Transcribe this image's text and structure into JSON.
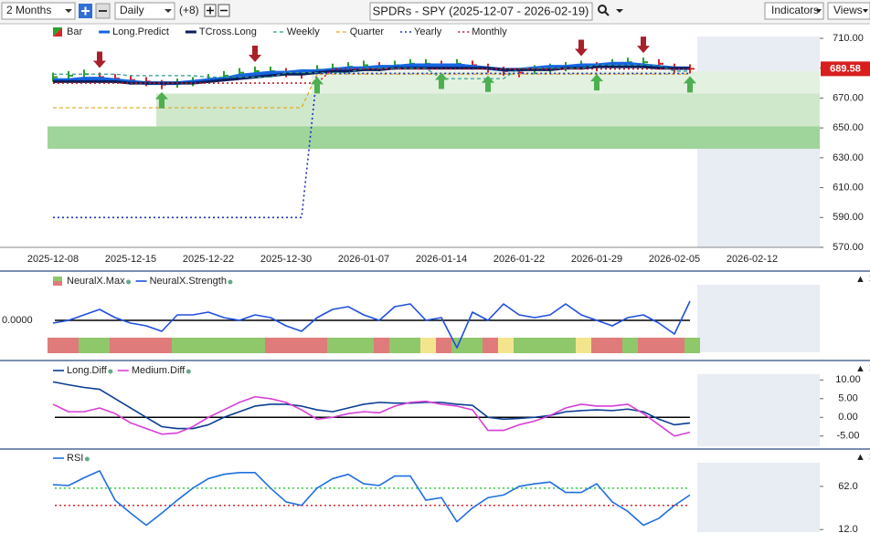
{
  "toolbar": {
    "period": "2 Months",
    "interval": "Daily",
    "offset": "(+8)",
    "title": "SPDRs - SPY (2025-12-07 - 2026-02-19)",
    "indicators": "Indicators",
    "views": "Views"
  },
  "chart_data": [
    {
      "type": "line",
      "ylim": [
        570,
        710
      ],
      "yticks": [
        {
          "value": 710,
          "label": "710.00"
        },
        {
          "value": 690,
          "label": "690.00"
        },
        {
          "value": 670,
          "label": "670.00"
        },
        {
          "value": 650,
          "label": "650.00"
        },
        {
          "value": 630,
          "label": "630.00"
        },
        {
          "value": 610,
          "label": "610.00"
        },
        {
          "value": 590,
          "label": "590.00"
        },
        {
          "value": 570,
          "label": "570.00"
        }
      ],
      "tick_side": "right",
      "categories": [
        "2025-12-08",
        null,
        null,
        null,
        null,
        "2025-12-15",
        null,
        null,
        null,
        null,
        "2025-12-22",
        null,
        null,
        null,
        null,
        "2025-12-30",
        null,
        null,
        null,
        null,
        "2026-01-07",
        null,
        null,
        null,
        null,
        "2026-01-14",
        null,
        null,
        null,
        null,
        "2026-01-22",
        null,
        null,
        null,
        null,
        "2026-01-29",
        null,
        null,
        null,
        null,
        "2026-02-05",
        null,
        null,
        null,
        null,
        "2026-02-12",
        null,
        null,
        null,
        null
      ],
      "last_price": 689.58,
      "last_price_color": "#d81e1e",
      "bands": [
        {
          "from": 636,
          "to": 651,
          "start": 0,
          "color": "#9fd49a"
        },
        {
          "from": 651,
          "to": 673,
          "start": 7,
          "color": "#cfe8cb"
        },
        {
          "from": 673,
          "to": 688,
          "start": 17,
          "color": "#e3f1e0"
        }
      ],
      "down_arrows": [
        3,
        13,
        34,
        38
      ],
      "up_arrows": [
        7,
        17,
        25,
        28,
        35,
        41
      ],
      "down_arrow_color": "#a8202a",
      "up_arrow_color": "#4caf50",
      "series": [
        {
          "name": "Bar",
          "kind": "ohlc",
          "color": "#2ca02c",
          "down_color": "#d62728",
          "values": [
            684,
            685,
            686,
            684,
            683,
            682,
            681,
            679,
            680,
            681,
            683,
            685,
            687,
            688,
            688,
            687,
            686,
            689,
            690,
            691,
            692,
            691,
            692,
            693,
            693,
            692,
            693,
            692,
            690,
            688,
            687,
            689,
            690,
            691,
            692,
            691,
            693,
            694,
            694,
            693,
            690,
            689.58,
            null,
            null,
            null,
            null,
            null,
            null,
            null,
            null
          ]
        },
        {
          "name": "Long.Predict",
          "kind": "line",
          "style": "solid",
          "width": 4,
          "color": "#1565e0",
          "values": [
            682,
            682,
            683,
            683,
            682,
            681,
            680,
            680,
            680,
            681,
            682,
            683,
            685,
            686,
            687,
            687,
            688,
            688,
            689,
            690,
            690,
            691,
            691,
            692,
            692,
            692,
            692,
            691,
            690,
            689,
            689,
            690,
            691,
            691,
            692,
            692,
            693,
            693,
            692,
            691,
            690,
            690,
            null,
            null,
            null,
            null,
            null,
            null,
            null,
            null
          ]
        },
        {
          "name": "TCross.Long",
          "kind": "line",
          "style": "solid",
          "width": 3,
          "color": "#0a1f5c",
          "values": [
            681,
            681,
            681,
            681,
            681,
            680,
            680,
            680,
            680,
            680,
            681,
            682,
            683,
            684,
            685,
            686,
            686,
            687,
            688,
            688,
            689,
            689,
            690,
            690,
            690,
            690,
            690,
            690,
            690,
            689,
            689,
            689,
            689,
            690,
            690,
            691,
            691,
            691,
            691,
            690,
            690,
            690,
            null,
            null,
            null,
            null,
            null,
            null,
            null,
            null
          ]
        },
        {
          "name": "Weekly",
          "kind": "line",
          "style": "dashed",
          "width": 1.2,
          "color": "#2e9a8a",
          "values": [
            686,
            686,
            686,
            686,
            686,
            685,
            685,
            685,
            685,
            685,
            684,
            684,
            684,
            684,
            684,
            687,
            687,
            687,
            687,
            687,
            690,
            690,
            690,
            690,
            690,
            683,
            683,
            683,
            683,
            683,
            690,
            690,
            690,
            690,
            690,
            692,
            692,
            692,
            692,
            692,
            688,
            688,
            null,
            null,
            null,
            null,
            null,
            null,
            null,
            null
          ]
        },
        {
          "name": "Quarter",
          "kind": "line",
          "style": "dashed",
          "width": 1.2,
          "color": "#e8a317",
          "values": [
            663.5,
            663.5,
            663.5,
            663.5,
            663.5,
            663.5,
            663.5,
            663.5,
            663.5,
            663.5,
            663.5,
            663.5,
            663.5,
            663.5,
            663.5,
            663.5,
            663.5,
            686,
            686,
            686,
            686,
            686,
            686,
            686,
            686,
            686,
            686,
            686,
            686,
            686,
            686,
            686,
            686,
            686,
            686,
            686,
            686,
            686,
            686,
            686,
            686,
            686,
            null,
            null,
            null,
            null,
            null,
            null,
            null,
            null
          ]
        },
        {
          "name": "Yearly",
          "kind": "line",
          "style": "dotted",
          "width": 1.6,
          "color": "#1c2fc4",
          "values": [
            590,
            590,
            590,
            590,
            590,
            590,
            590,
            590,
            590,
            590,
            590,
            590,
            590,
            590,
            590,
            590,
            590,
            686.5,
            686.5,
            686.5,
            686.5,
            686.5,
            686.5,
            686.5,
            686.5,
            686.5,
            686.5,
            686.5,
            686.5,
            686.5,
            686.5,
            686.5,
            686.5,
            686.5,
            686.5,
            686.5,
            686.5,
            686.5,
            686.5,
            686.5,
            686.5,
            686.5,
            null,
            null,
            null,
            null,
            null,
            null,
            null,
            null
          ]
        },
        {
          "name": "Monthly",
          "kind": "line",
          "style": "dotted",
          "width": 1.6,
          "color": "#c0182a",
          "values": [
            680,
            680,
            680,
            680,
            680,
            680,
            680,
            680,
            680,
            680,
            680,
            680,
            680,
            680,
            680,
            680,
            680,
            680,
            689.5,
            689.5,
            689.5,
            689.5,
            689.5,
            689.5,
            689.5,
            689.5,
            689.5,
            689.5,
            689.5,
            689.5,
            689.5,
            689.5,
            689.5,
            689.5,
            689.5,
            689.5,
            689.5,
            689.5,
            689.5,
            689.5,
            689.5,
            689.5,
            null,
            null,
            null,
            null,
            null,
            null,
            null,
            null
          ]
        }
      ]
    },
    {
      "type": "line",
      "ylim": [
        -1.2,
        1.2
      ],
      "yticks": [
        {
          "value": 0,
          "label": "0.0000"
        }
      ],
      "tick_side": "left",
      "zero_line": true,
      "series": [
        {
          "name": "NeuralX.Max",
          "kind": "state",
          "color": "#8fc76b",
          "state_colors": {
            "1": "#8fc76b",
            "0": "#f3e58e",
            "-1": "#e07b7b"
          },
          "values": [
            -1,
            -1,
            1,
            1,
            -1,
            -1,
            -1,
            -1,
            1,
            1,
            1,
            1,
            1,
            1,
            -1,
            -1,
            -1,
            -1,
            1,
            1,
            1,
            -1,
            1,
            1,
            0,
            -1,
            1,
            1,
            -1,
            0,
            1,
            1,
            1,
            1,
            0,
            -1,
            -1,
            1,
            -1,
            -1,
            -1,
            1,
            null,
            null,
            null,
            null,
            null,
            null,
            null,
            null
          ]
        },
        {
          "name": "NeuralX.Strength",
          "kind": "line",
          "style": "solid",
          "width": 1.6,
          "color": "#1f4fe0",
          "values": [
            -0.1,
            0,
            0.2,
            0.4,
            0.1,
            -0.1,
            -0.2,
            -0.4,
            0.2,
            0.2,
            0.3,
            0.1,
            0,
            0.2,
            0.1,
            -0.2,
            -0.4,
            0.1,
            0.4,
            0.5,
            0.2,
            0,
            0.5,
            0.6,
            0,
            0.1,
            -1,
            0.3,
            0,
            0.6,
            0.2,
            0.1,
            0.2,
            0.6,
            0.2,
            0,
            -0.2,
            0.1,
            0.2,
            -0.1,
            -0.5,
            0.7,
            null,
            null,
            null,
            null,
            null,
            null,
            null,
            null
          ]
        }
      ]
    },
    {
      "type": "line",
      "ylim": [
        -8,
        13.5
      ],
      "yticks": [
        {
          "value": 10,
          "label": "10.00"
        },
        {
          "value": 5,
          "label": "5.00"
        },
        {
          "value": 0,
          "label": "0.00"
        },
        {
          "value": -5,
          "label": "-5.00"
        }
      ],
      "tick_side": "right",
      "zero_line": true,
      "series": [
        {
          "name": "Long.Diff",
          "kind": "line",
          "style": "solid",
          "width": 1.6,
          "color": "#0b3d91",
          "values": [
            9.5,
            8.7,
            8,
            7.5,
            5,
            2.5,
            0,
            -2.5,
            -3,
            -3,
            -2,
            0,
            1.5,
            3,
            3.5,
            3.5,
            3,
            2,
            1.5,
            2.5,
            3.5,
            4,
            3.8,
            3.8,
            4,
            4,
            3.5,
            3.2,
            0,
            -0.5,
            -0.3,
            0,
            0.5,
            1.5,
            1.8,
            2,
            1.8,
            2.2,
            1.5,
            -0.5,
            -2,
            -1.5,
            null,
            null,
            null,
            null,
            null,
            null,
            null,
            null
          ]
        },
        {
          "name": "Medium.Diff",
          "kind": "line",
          "style": "solid",
          "width": 1.6,
          "color": "#d63fd6",
          "values": [
            3.5,
            1.5,
            1.5,
            2.5,
            1,
            -1.5,
            -3,
            -4.5,
            -4.2,
            -2.5,
            0,
            2,
            4,
            5.5,
            5,
            4,
            2,
            -0.5,
            0,
            1,
            1.5,
            1.2,
            3,
            4,
            4.3,
            3.5,
            3,
            2,
            -3.5,
            -3.5,
            -2,
            -1,
            0.5,
            2.5,
            3.5,
            3,
            3,
            3.5,
            1,
            -2,
            -5,
            -4,
            null,
            null,
            null,
            null,
            null,
            null,
            null,
            null
          ]
        }
      ]
    },
    {
      "type": "line",
      "ylim": [
        8,
        100
      ],
      "yticks": [
        {
          "value": 62,
          "label": "62.0"
        },
        {
          "value": 12,
          "label": "12.0"
        }
      ],
      "tick_side": "right",
      "levels": [
        {
          "value": 60,
          "color": "#2ecc40"
        },
        {
          "value": 40,
          "color": "#d62728"
        }
      ],
      "series": [
        {
          "name": "RSI",
          "kind": "line",
          "style": "solid",
          "width": 1.6,
          "color": "#1f6fe0",
          "values": [
            64,
            63,
            72,
            80,
            46,
            31,
            17,
            31,
            46,
            60,
            71,
            76,
            78,
            78,
            60,
            44,
            40,
            60,
            71,
            76,
            65,
            63,
            74,
            74,
            46,
            49,
            21,
            37,
            49,
            52,
            62,
            65,
            67,
            55,
            55,
            65,
            44,
            33,
            17,
            25,
            40,
            52,
            null,
            null,
            null,
            null,
            null,
            null,
            null,
            null
          ]
        }
      ]
    }
  ]
}
